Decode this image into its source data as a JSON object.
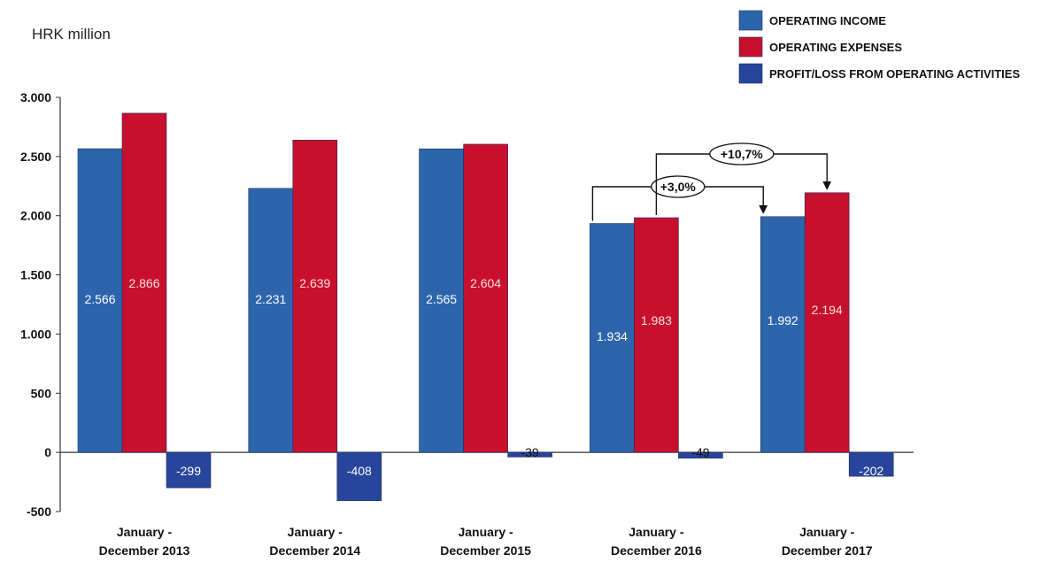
{
  "chart_data": {
    "type": "bar",
    "title": "",
    "ylabel": "HRK million",
    "xlabel": "",
    "ylim": [
      -500,
      3000
    ],
    "yticks": [
      -500,
      0,
      500,
      1000,
      1500,
      2000,
      2500,
      3000
    ],
    "ytick_labels": [
      "-500",
      "0",
      "500",
      "1.000",
      "1.500",
      "2.000",
      "2.500",
      "3.000"
    ],
    "categories": [
      [
        "January -",
        "December 2013"
      ],
      [
        "January -",
        "December 2014"
      ],
      [
        "January -",
        "December 2015"
      ],
      [
        "January -",
        "December 2016"
      ],
      [
        "January -",
        "December 2017"
      ]
    ],
    "series": [
      {
        "name": "OPERATING INCOME",
        "color": "#2d65ad",
        "values": [
          2566,
          2231,
          2565,
          1934,
          1992
        ],
        "labels": [
          "2.566",
          "2.231",
          "2.565",
          "1.934",
          "1.992"
        ]
      },
      {
        "name": "OPERATING EXPENSES",
        "color": "#c8102e",
        "values": [
          2866,
          2639,
          2604,
          1983,
          2194
        ],
        "labels": [
          "2.866",
          "2.639",
          "2.604",
          "1.983",
          "2.194"
        ]
      },
      {
        "name": "PROFIT/LOSS FROM OPERATING ACTIVITIES",
        "color": "#27459a",
        "values": [
          -299,
          -408,
          -39,
          -49,
          -202
        ],
        "labels": [
          "-299",
          "-408",
          "-39",
          "-49",
          "-202"
        ]
      }
    ],
    "legend_position": "top-right",
    "grid": false,
    "annotations": [
      {
        "text": "+3,0%",
        "from_category": 3,
        "to_category": 4,
        "series": "OPERATING INCOME"
      },
      {
        "text": "+10,7%",
        "from_category": 3,
        "to_category": 4,
        "series": "OPERATING EXPENSES"
      }
    ]
  }
}
